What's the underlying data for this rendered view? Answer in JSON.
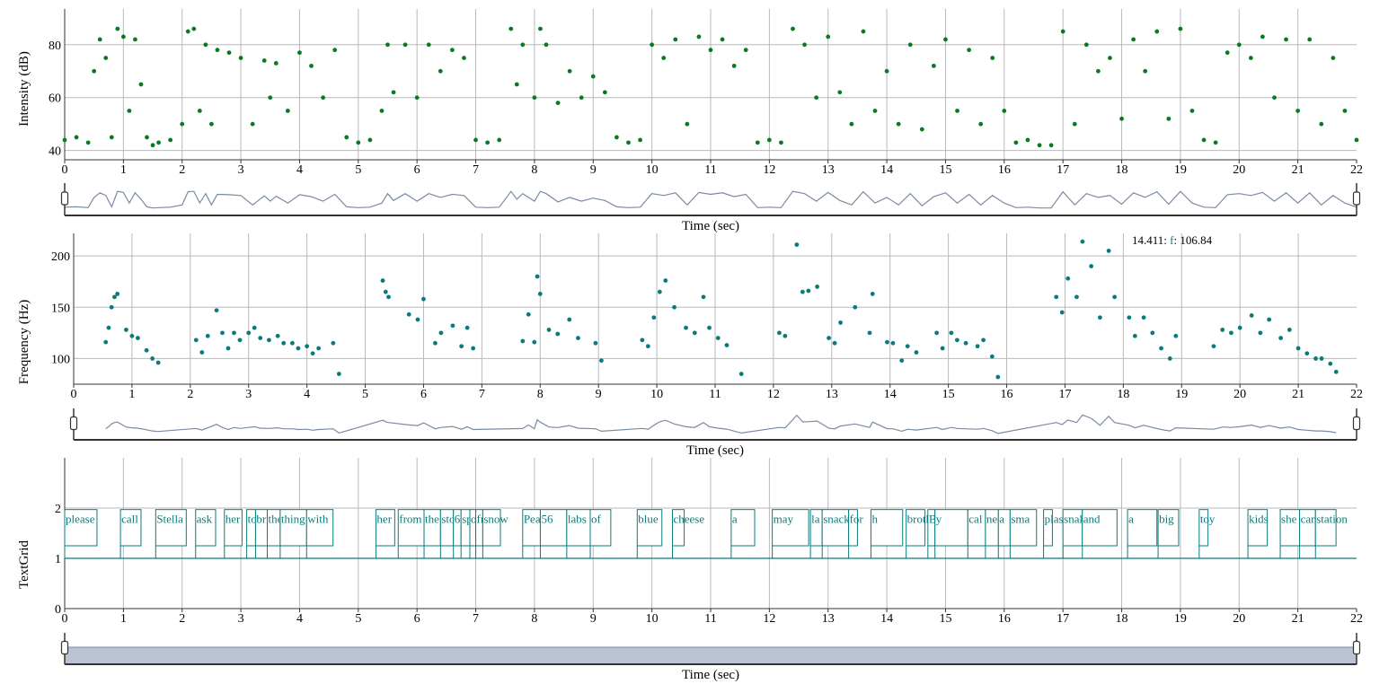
{
  "colors": {
    "intensity": "#0a7a22",
    "pitch": "#0a7b7b",
    "textgrid": "#0a7b7b",
    "overview_line": "#7a8aa5",
    "grid": "#b9b9b9",
    "axis": "#333333",
    "slider_fill": "#bcc4d3"
  },
  "chart_data": [
    {
      "type": "scatter",
      "ylabel": "Intensity (dB)",
      "xlabel": "Time (sec)",
      "xlim": [
        0,
        22
      ],
      "ylim": [
        36.5,
        93.5
      ],
      "yticks": [
        40,
        60,
        80
      ],
      "xticks": [
        0,
        1,
        2,
        3,
        4,
        5,
        6,
        7,
        8,
        9,
        10,
        11,
        12,
        13,
        14,
        15,
        16,
        17,
        18,
        19,
        20,
        21,
        22
      ],
      "grid": true,
      "series": [
        {
          "x": [
            0.0,
            0.2,
            0.4,
            0.5,
            0.6,
            0.7,
            0.8,
            0.9,
            1.0,
            1.1,
            1.2,
            1.3,
            1.4,
            1.5,
            1.6,
            1.8,
            2.0,
            2.1,
            2.2,
            2.3,
            2.4,
            2.5,
            2.6,
            2.8,
            3.0,
            3.2,
            3.4,
            3.5,
            3.6,
            3.8,
            4.0,
            4.2,
            4.4,
            4.6,
            4.8,
            5.0,
            5.2,
            5.4,
            5.5,
            5.6,
            5.8,
            6.0,
            6.2,
            6.4,
            6.6,
            6.8,
            7.0,
            7.2,
            7.4,
            7.6,
            7.7,
            7.8,
            8.0,
            8.1,
            8.2,
            8.4,
            8.6,
            8.8,
            9.0,
            9.2,
            9.4,
            9.6,
            9.8,
            10.0,
            10.2,
            10.4,
            10.6,
            10.8,
            11.0,
            11.2,
            11.4,
            11.6,
            11.8,
            12.0,
            12.2,
            12.4,
            12.6,
            12.8,
            13.0,
            13.2,
            13.4,
            13.6,
            13.8,
            14.0,
            14.2,
            14.4,
            14.6,
            14.8,
            15.0,
            15.2,
            15.4,
            15.6,
            15.8,
            16.0,
            16.2,
            16.4,
            16.6,
            16.8,
            17.0,
            17.2,
            17.4,
            17.6,
            17.8,
            18.0,
            18.2,
            18.4,
            18.6,
            18.8,
            19.0,
            19.2,
            19.4,
            19.6,
            19.8,
            20.0,
            20.2,
            20.4,
            20.6,
            20.8,
            21.0,
            21.2,
            21.4,
            21.6,
            21.8,
            22.0
          ],
          "y": [
            44,
            45,
            43,
            70,
            82,
            75,
            45,
            86,
            83,
            55,
            82,
            65,
            45,
            42,
            43,
            44,
            50,
            85,
            86,
            55,
            80,
            50,
            78,
            77,
            75,
            50,
            74,
            60,
            73,
            55,
            77,
            72,
            60,
            78,
            45,
            43,
            44,
            55,
            80,
            62,
            80,
            60,
            80,
            70,
            78,
            75,
            44,
            43,
            44,
            86,
            65,
            80,
            60,
            86,
            80,
            58,
            70,
            60,
            68,
            62,
            45,
            43,
            44,
            80,
            75,
            82,
            50,
            83,
            78,
            82,
            72,
            78,
            43,
            44,
            43,
            86,
            80,
            60,
            83,
            62,
            50,
            85,
            55,
            70,
            50,
            80,
            48,
            72,
            82,
            55,
            78,
            50,
            75,
            55,
            43,
            44,
            42,
            42,
            85,
            50,
            80,
            70,
            75,
            52,
            82,
            70,
            85,
            52,
            86,
            55,
            44,
            43,
            77,
            80,
            75,
            83,
            60,
            82,
            55,
            82,
            50,
            75,
            55,
            44
          ]
        }
      ]
    },
    {
      "type": "scatter",
      "ylabel": "Frequency (Hz)",
      "xlabel": "Time (sec)",
      "xlim": [
        0,
        22
      ],
      "ylim": [
        75,
        222
      ],
      "yticks": [
        100,
        150,
        200
      ],
      "xticks": [
        0,
        1,
        2,
        3,
        4,
        5,
        6,
        7,
        8,
        9,
        10,
        11,
        12,
        13,
        14,
        15,
        16,
        17,
        18,
        19,
        20,
        21,
        22
      ],
      "grid": true,
      "readout": {
        "time": "14.411",
        "label": "f",
        "value": "106.84"
      },
      "series": [
        {
          "x": [
            0.55,
            0.6,
            0.65,
            0.7,
            0.75,
            0.9,
            1.0,
            1.1,
            1.25,
            1.35,
            1.45,
            2.1,
            2.2,
            2.3,
            2.45,
            2.55,
            2.65,
            2.75,
            2.85,
            3.0,
            3.1,
            3.2,
            3.35,
            3.5,
            3.6,
            3.75,
            3.85,
            4.0,
            4.1,
            4.2,
            4.45,
            4.55,
            5.3,
            5.35,
            5.4,
            5.75,
            5.9,
            6.0,
            6.2,
            6.3,
            6.5,
            6.65,
            6.75,
            6.85,
            7.7,
            7.8,
            7.9,
            7.95,
            8.0,
            8.15,
            8.3,
            8.5,
            8.65,
            8.95,
            9.05,
            9.75,
            9.85,
            9.95,
            10.05,
            10.15,
            10.3,
            10.5,
            10.65,
            10.8,
            10.9,
            11.05,
            11.2,
            11.45,
            12.1,
            12.2,
            12.4,
            12.5,
            12.6,
            12.75,
            12.95,
            13.05,
            13.15,
            13.4,
            13.65,
            13.7,
            13.95,
            14.05,
            14.2,
            14.3,
            14.45,
            14.8,
            14.9,
            15.05,
            15.15,
            15.3,
            15.5,
            15.6,
            15.75,
            15.85,
            16.85,
            16.95,
            17.05,
            17.2,
            17.3,
            17.45,
            17.6,
            17.75,
            17.85,
            18.1,
            18.2,
            18.35,
            18.5,
            18.65,
            18.8,
            18.9,
            19.55,
            19.7,
            19.85,
            20.0,
            20.2,
            20.35,
            20.5,
            20.7,
            20.85,
            21.0,
            21.15,
            21.3,
            21.4,
            21.55,
            21.65
          ],
          "y": [
            116,
            130,
            150,
            160,
            163,
            128,
            122,
            120,
            108,
            100,
            96,
            118,
            106,
            122,
            147,
            125,
            110,
            125,
            118,
            125,
            130,
            120,
            118,
            122,
            115,
            115,
            110,
            112,
            105,
            110,
            115,
            85,
            176,
            165,
            160,
            143,
            138,
            158,
            115,
            125,
            132,
            112,
            130,
            110,
            117,
            143,
            116,
            180,
            163,
            128,
            124,
            138,
            120,
            115,
            98,
            118,
            112,
            140,
            165,
            176,
            150,
            130,
            125,
            160,
            130,
            120,
            113,
            85,
            125,
            122,
            211,
            165,
            166,
            170,
            120,
            115,
            135,
            150,
            125,
            163,
            116,
            115,
            98,
            112,
            106,
            125,
            110,
            125,
            118,
            115,
            112,
            118,
            102,
            82,
            160,
            145,
            178,
            160,
            214,
            190,
            140,
            205,
            160,
            140,
            122,
            140,
            125,
            110,
            100,
            122,
            112,
            128,
            125,
            130,
            142,
            125,
            138,
            120,
            128,
            110,
            105,
            100,
            100,
            95,
            87
          ]
        }
      ]
    },
    {
      "type": "table",
      "ylabel": "TextGrid",
      "xlabel": "Time (sec)",
      "xlim": [
        0,
        22
      ],
      "ylim": [
        0,
        3
      ],
      "yticks": [
        0,
        1,
        2
      ],
      "xticks": [
        0,
        1,
        2,
        3,
        4,
        5,
        6,
        7,
        8,
        9,
        10,
        11,
        12,
        13,
        14,
        15,
        16,
        17,
        18,
        19,
        20,
        21,
        22
      ],
      "grid": true,
      "labels": [
        {
          "text": "please",
          "start": 0.0,
          "end": 0.55
        },
        {
          "text": "call",
          "start": 0.95,
          "end": 1.3
        },
        {
          "text": "Stella",
          "start": 1.55,
          "end": 2.07
        },
        {
          "text": "ask",
          "start": 2.23,
          "end": 2.57
        },
        {
          "text": "her",
          "start": 2.72,
          "end": 3.02
        },
        {
          "text": "to",
          "start": 3.1,
          "end": 3.25
        },
        {
          "text": "bri",
          "start": 3.25,
          "end": 3.45
        },
        {
          "text": "the",
          "start": 3.45,
          "end": 3.67
        },
        {
          "text": "thing",
          "start": 3.67,
          "end": 4.12
        },
        {
          "text": "with",
          "start": 4.12,
          "end": 4.57
        },
        {
          "text": "her",
          "start": 5.3,
          "end": 5.62
        },
        {
          "text": "from",
          "start": 5.68,
          "end": 6.12
        },
        {
          "text": "the",
          "start": 6.12,
          "end": 6.4
        },
        {
          "text": "sto",
          "start": 6.4,
          "end": 6.62
        },
        {
          "text": "6",
          "start": 6.62,
          "end": 6.75
        },
        {
          "text": "sp",
          "start": 6.75,
          "end": 6.9
        },
        {
          "text": "o",
          "start": 6.9,
          "end": 7.0
        },
        {
          "text": "fres",
          "start": 7.0,
          "end": 7.12
        },
        {
          "text": "snow",
          "start": 7.12,
          "end": 7.42
        },
        {
          "text": "Peas",
          "start": 7.8,
          "end": 8.1
        },
        {
          "text": "56",
          "start": 8.1,
          "end": 8.55
        },
        {
          "text": "labs",
          "start": 8.55,
          "end": 8.95
        },
        {
          "text": "of",
          "start": 8.95,
          "end": 9.3
        },
        {
          "text": "blue",
          "start": 9.75,
          "end": 10.17
        },
        {
          "text": "cheese",
          "start": 10.35,
          "end": 10.55
        },
        {
          "text": "a",
          "start": 11.35,
          "end": 11.75
        },
        {
          "text": "may",
          "start": 12.05,
          "end": 12.67
        },
        {
          "text": "la",
          "start": 12.7,
          "end": 12.9
        },
        {
          "text": "snack",
          "start": 12.9,
          "end": 13.35
        },
        {
          "text": "for",
          "start": 13.35,
          "end": 13.5
        },
        {
          "text": "h",
          "start": 13.73,
          "end": 14.27
        },
        {
          "text": "brother",
          "start": 14.33,
          "end": 14.65
        },
        {
          "text": "Bob",
          "start": 14.7,
          "end": 14.82
        },
        {
          "text": "y",
          "start": 14.82,
          "end": 15.38
        },
        {
          "text": "cal",
          "start": 15.38,
          "end": 15.68
        },
        {
          "text": "need",
          "start": 15.68,
          "end": 15.9
        },
        {
          "text": "a",
          "start": 15.9,
          "end": 16.1
        },
        {
          "text": "sma",
          "start": 16.1,
          "end": 16.55
        },
        {
          "text": "plastic",
          "start": 16.67,
          "end": 16.82
        },
        {
          "text": "snake",
          "start": 17.0,
          "end": 17.33
        },
        {
          "text": "and",
          "start": 17.33,
          "end": 17.92
        },
        {
          "text": "a",
          "start": 18.1,
          "end": 18.6
        },
        {
          "text": "big",
          "start": 18.62,
          "end": 18.97
        },
        {
          "text": "toy",
          "start": 19.32,
          "end": 19.47
        },
        {
          "text": "kids",
          "start": 20.15,
          "end": 20.48
        },
        {
          "text": "she",
          "start": 20.7,
          "end": 21.03
        },
        {
          "text": "can",
          "start": 21.03,
          "end": 21.3
        },
        {
          "text": "station",
          "start": 21.3,
          "end": 21.65
        }
      ]
    }
  ]
}
